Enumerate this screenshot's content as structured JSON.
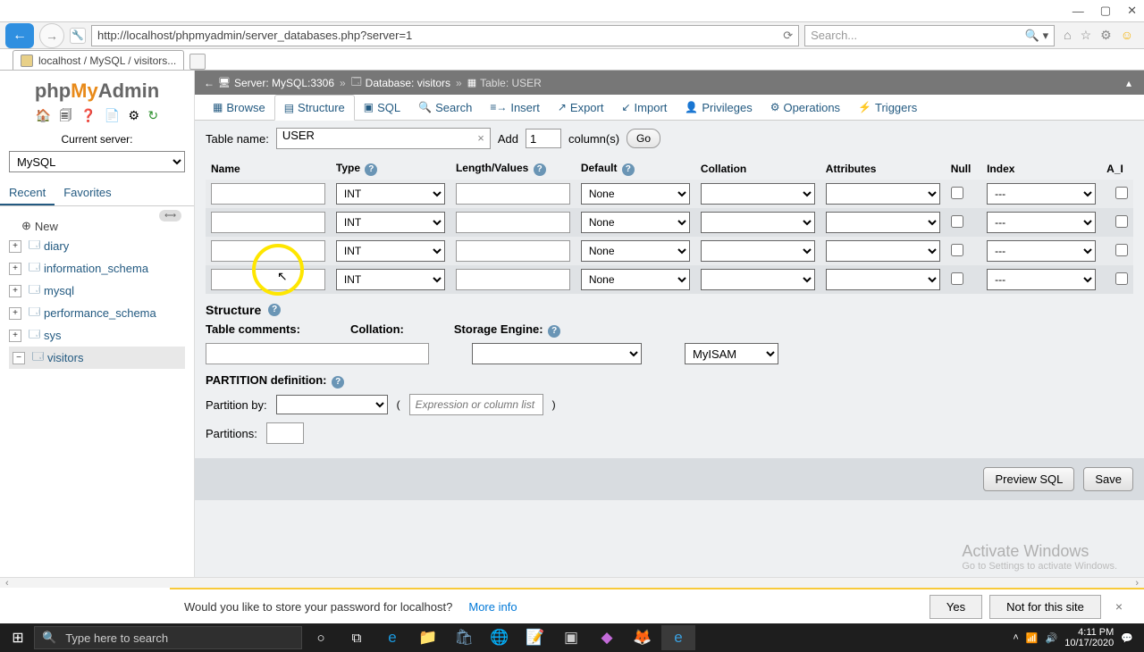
{
  "browser": {
    "url": "http://localhost/phpmyadmin/server_databases.php?server=1",
    "search_placeholder": "Search...",
    "tab_title": "localhost / MySQL / visitors..."
  },
  "sidebar": {
    "logo": {
      "php": "php",
      "my": "My",
      "admin": "Admin"
    },
    "server_label": "Current server:",
    "server_value": "MySQL",
    "tabs": {
      "recent": "Recent",
      "favorites": "Favorites"
    },
    "new_label": "New",
    "databases": [
      "diary",
      "information_schema",
      "mysql",
      "performance_schema",
      "sys",
      "visitors"
    ]
  },
  "breadcrumb": {
    "server": "Server: MySQL:3306",
    "database": "Database: visitors",
    "table": "Table: USER"
  },
  "top_tabs": [
    "Browse",
    "Structure",
    "SQL",
    "Search",
    "Insert",
    "Export",
    "Import",
    "Privileges",
    "Operations",
    "Triggers"
  ],
  "tab_icons": [
    "▦",
    "▤",
    "▣",
    "🔍",
    "≡→",
    "↗",
    "↙",
    "👤",
    "⚙",
    "⚡"
  ],
  "form": {
    "table_name_label": "Table name:",
    "table_name_value": "USER",
    "add_label": "Add",
    "cols_value": "1",
    "cols_suffix": "column(s)",
    "go_label": "Go",
    "headers": {
      "name": "Name",
      "type": "Type",
      "length": "Length/Values",
      "default": "Default",
      "collation": "Collation",
      "attributes": "Attributes",
      "null": "Null",
      "index": "Index",
      "ai": "A_I"
    },
    "type_default": "INT",
    "default_default": "None",
    "index_default": "---",
    "rows": 4,
    "structure_label": "Structure",
    "table_comments_label": "Table comments:",
    "collation_label": "Collation:",
    "storage_engine_label": "Storage Engine:",
    "engine_value": "MyISAM",
    "partition_label": "PARTITION definition:",
    "partition_by_label": "Partition by:",
    "expression_placeholder": "Expression or column list",
    "partitions_label": "Partitions:",
    "preview_label": "Preview SQL",
    "save_label": "Save"
  },
  "notification": {
    "message": "Would you like to store your password for localhost?",
    "more_info": "More info",
    "yes": "Yes",
    "not_for_site": "Not for this site"
  },
  "activate": {
    "title": "Activate Windows",
    "subtitle": "Go to Settings to activate Windows."
  },
  "taskbar": {
    "search_placeholder": "Type here to search",
    "time": "4:11 PM",
    "date": "10/17/2020"
  },
  "colors": {
    "highlight": "#fee600",
    "link": "#235a81",
    "orange": "#e88a1a"
  }
}
